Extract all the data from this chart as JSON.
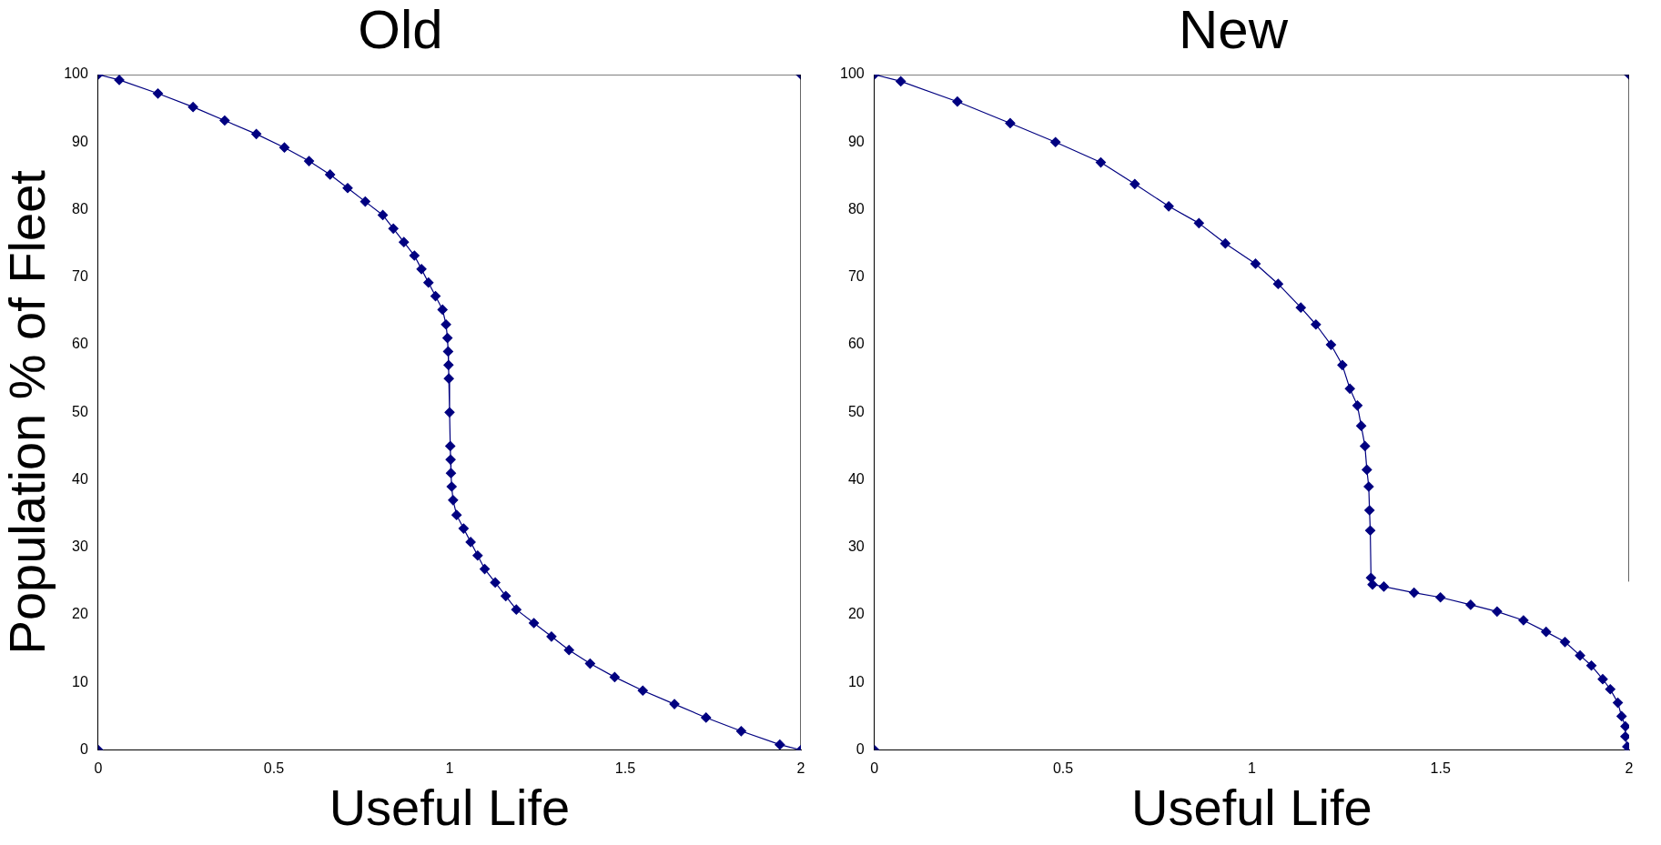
{
  "chart_data": [
    {
      "type": "line",
      "title": "Old",
      "xlabel": "Useful Life",
      "ylabel": "Population % of Fleet",
      "xlim": [
        0,
        2
      ],
      "xticks": [
        0,
        0.5,
        1,
        1.5,
        2
      ],
      "ylim": [
        0,
        100
      ],
      "yticks": [
        0,
        10,
        20,
        30,
        40,
        50,
        60,
        70,
        80,
        90,
        100
      ],
      "grid": false,
      "legend": false,
      "series": [
        {
          "type": "line",
          "color": "#000080",
          "marker": "diamond",
          "x": [
            0,
            0.06,
            0.17,
            0.27,
            0.36,
            0.45,
            0.53,
            0.6,
            0.66,
            0.71,
            0.76,
            0.81,
            0.84,
            0.87,
            0.9,
            0.92,
            0.94,
            0.96,
            0.98,
            0.99,
            0.994,
            0.996,
            0.997,
            0.998,
            1,
            1.002,
            1.003,
            1.004,
            1.006,
            1.01,
            1.02,
            1.04,
            1.06,
            1.08,
            1.1,
            1.13,
            1.16,
            1.19,
            1.24,
            1.29,
            1.34,
            1.4,
            1.47,
            1.55,
            1.64,
            1.73,
            1.83,
            1.94,
            2
          ],
          "values": [
            100,
            99.2,
            97.2,
            95.2,
            93.2,
            91.2,
            89.2,
            87.2,
            85.2,
            83.2,
            81.2,
            79.2,
            77.2,
            75.2,
            73.2,
            71.2,
            69.2,
            67.2,
            65.2,
            63,
            61,
            59,
            57,
            55,
            50,
            45,
            43,
            41,
            39,
            37,
            34.8,
            32.8,
            30.8,
            28.8,
            26.8,
            24.8,
            22.8,
            20.8,
            18.8,
            16.8,
            14.8,
            12.8,
            10.8,
            8.8,
            6.8,
            4.8,
            2.8,
            0.8,
            0
          ]
        },
        {
          "type": "line",
          "color": "#000000",
          "marker": "none",
          "x": [
            0,
            2,
            2
          ],
          "values": [
            100,
            100,
            0
          ]
        },
        {
          "type": "scatter",
          "color": "#000080",
          "marker": "diamond",
          "x": [
            0,
            2
          ],
          "values": [
            0,
            100
          ]
        }
      ]
    },
    {
      "type": "line",
      "title": "New",
      "xlabel": "Useful Life",
      "xlim": [
        0,
        2
      ],
      "xticks": [
        0,
        0.5,
        1,
        1.5,
        2
      ],
      "ylim": [
        0,
        100
      ],
      "yticks": [
        0,
        10,
        20,
        30,
        40,
        50,
        60,
        70,
        80,
        90,
        100
      ],
      "grid": false,
      "legend": false,
      "series": [
        {
          "type": "line",
          "color": "#000080",
          "marker": "diamond",
          "x": [
            0,
            0.07,
            0.22,
            0.36,
            0.48,
            0.6,
            0.69,
            0.78,
            0.86,
            0.93,
            1.01,
            1.07,
            1.13,
            1.17,
            1.21,
            1.24,
            1.26,
            1.28,
            1.29,
            1.3,
            1.305,
            1.31,
            1.312,
            1.314,
            1.316,
            1.32,
            1.35,
            1.43,
            1.5,
            1.58,
            1.65,
            1.72,
            1.78,
            1.83,
            1.87,
            1.9,
            1.93,
            1.95,
            1.97,
            1.98,
            1.99,
            1.99,
            1.995,
            2
          ],
          "values": [
            100,
            99,
            96,
            92.8,
            90,
            87,
            83.8,
            80.5,
            78,
            75,
            72,
            69,
            65.5,
            63,
            60,
            57,
            53.5,
            51,
            48,
            45,
            41.5,
            39,
            35.5,
            32.5,
            25.5,
            24.5,
            24.2,
            23.3,
            22.6,
            21.5,
            20.5,
            19.2,
            17.5,
            16,
            14,
            12.5,
            10.5,
            9,
            7,
            5,
            3.5,
            2,
            0.5,
            0
          ]
        },
        {
          "type": "line",
          "color": "#000000",
          "marker": "none",
          "x": [
            0,
            2,
            2
          ],
          "values": [
            100,
            100,
            25
          ]
        },
        {
          "type": "scatter",
          "color": "#000080",
          "marker": "diamond",
          "x": [
            0,
            2
          ],
          "values": [
            0,
            100
          ]
        }
      ]
    }
  ]
}
